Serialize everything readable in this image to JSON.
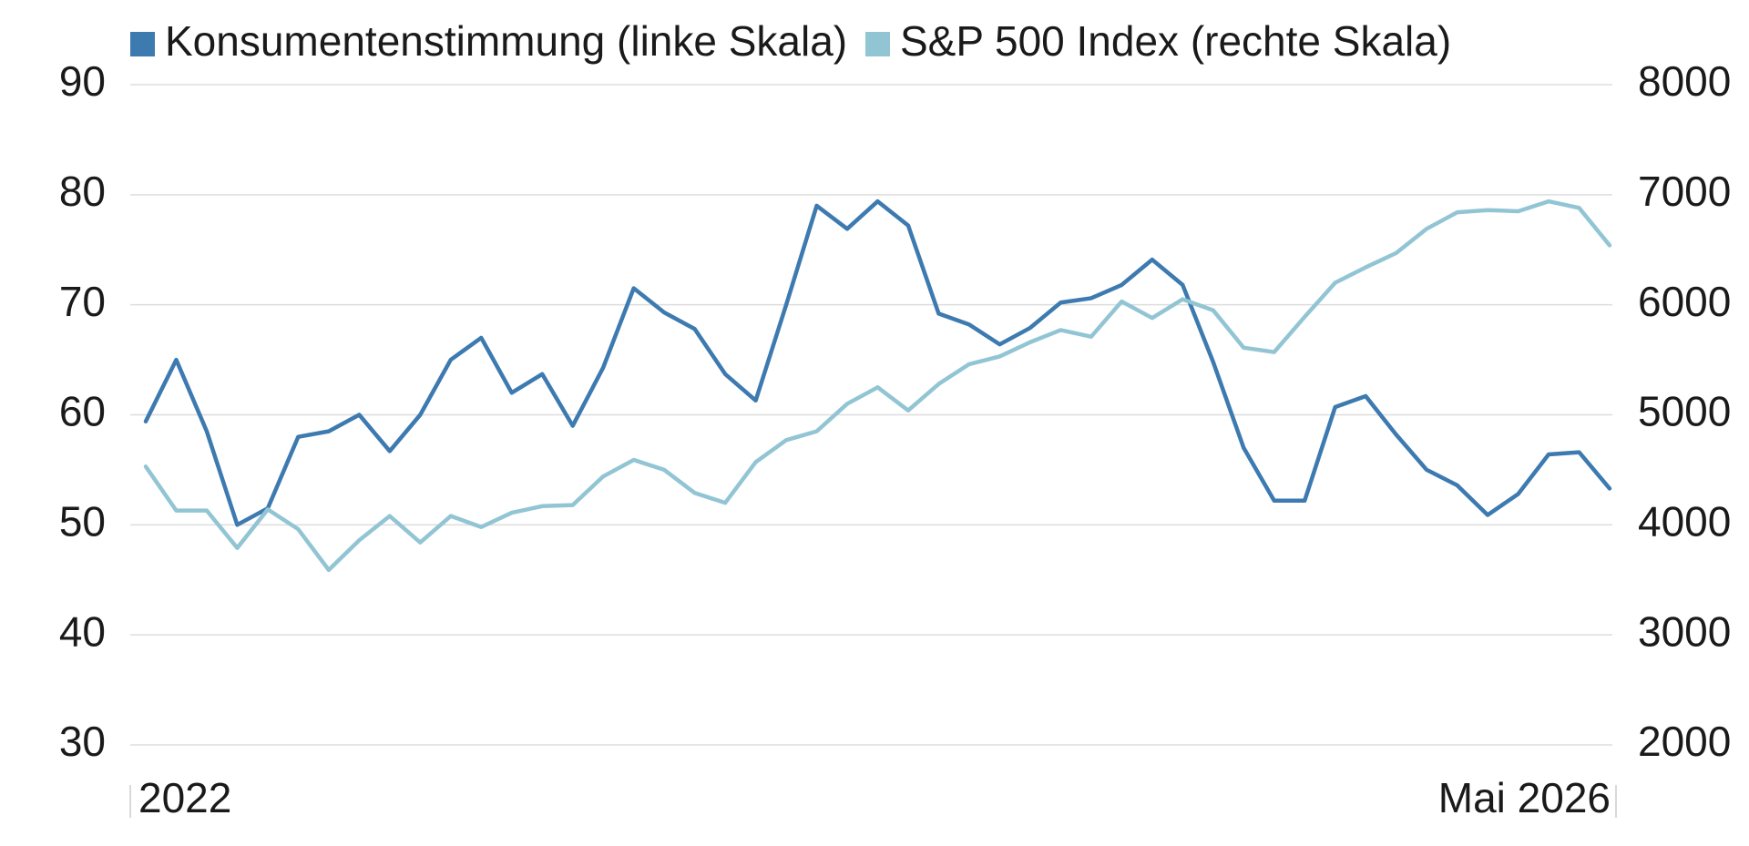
{
  "chart_data": {
    "type": "line",
    "categories": [
      "2022",
      null,
      null,
      null,
      null,
      null,
      null,
      null,
      null,
      null,
      null,
      null,
      null,
      null,
      null,
      null,
      null,
      null,
      null,
      null,
      null,
      null,
      null,
      null,
      null,
      null,
      null,
      null,
      null,
      null,
      null,
      null,
      null,
      null,
      null,
      null,
      null,
      null,
      null,
      null,
      null,
      null,
      null,
      null,
      null,
      null,
      null,
      null,
      "Mai 2026"
    ],
    "series": [
      {
        "name": "Konsumentenstimmung (linke Skala)",
        "color": "#3d7ab0",
        "values": [
          59.4,
          65,
          58.5,
          50,
          51.5,
          58,
          58.5,
          60,
          56.7,
          60,
          65,
          67,
          62,
          63.7,
          59,
          64.3,
          71.5,
          69.3,
          67.8,
          63.7,
          61.3,
          70,
          79,
          76.9,
          79.4,
          77.2,
          69.2,
          68.2,
          66.4,
          67.9,
          70.2,
          70.6,
          71.8,
          74.1,
          71.8,
          64.8,
          57,
          52.2,
          52.2,
          60.7,
          61.7,
          58.2,
          55,
          53.6,
          50.9,
          52.8,
          56.4,
          56.6,
          53.3
        ]
      },
      {
        "name": "S&P 500 Index (rechte Skala)",
        "color": "#92c5d4",
        "axis": "y2",
        "values": [
          4530,
          4130,
          4130,
          3790,
          4140,
          3960,
          3590,
          3860,
          4080,
          3840,
          4080,
          3980,
          4110,
          4170,
          4180,
          4440,
          4590,
          4500,
          4290,
          4200,
          4570,
          4770,
          4850,
          5100,
          5250,
          5040,
          5280,
          5460,
          5530,
          5660,
          5770,
          5710,
          6030,
          5880,
          6050,
          5950,
          5610,
          5570,
          5890,
          6200,
          6340,
          6470,
          6690,
          6840,
          6860,
          6850,
          6940,
          6880,
          6540
        ]
      }
    ],
    "ylim": [
      30,
      90
    ],
    "yticks": [
      30,
      40,
      50,
      60,
      70,
      80,
      90
    ],
    "y2lim": [
      2000,
      8000
    ],
    "y2ticks": [
      2000,
      3000,
      4000,
      5000,
      6000,
      7000,
      8000
    ],
    "grid": true,
    "legend": "top-left"
  }
}
